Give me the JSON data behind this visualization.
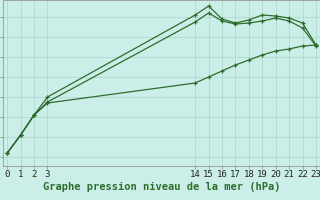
{
  "background_color": "#cceee8",
  "grid_color": "#aad8cc",
  "line_color": "#2d6e2d",
  "title": "Graphe pression niveau de la mer (hPa)",
  "tick_fontsize": 6.5,
  "title_fontsize": 7.5,
  "series": [
    {
      "x": [
        0,
        1,
        2,
        3,
        14,
        15,
        16,
        17,
        18,
        19,
        20,
        21,
        22,
        23
      ],
      "y": [
        1008.2,
        1009.1,
        1010.1,
        1011.0,
        1015.1,
        1015.55,
        1014.9,
        1014.7,
        1014.85,
        1015.1,
        1015.05,
        1014.95,
        1014.7,
        1013.6
      ]
    },
    {
      "x": [
        0,
        1,
        2,
        3,
        14,
        15,
        16,
        17,
        18,
        19,
        20,
        21,
        22,
        23
      ],
      "y": [
        1008.2,
        1009.1,
        1010.1,
        1010.75,
        1014.75,
        1015.2,
        1014.8,
        1014.65,
        1014.7,
        1014.8,
        1014.95,
        1014.8,
        1014.45,
        1013.55
      ]
    },
    {
      "x": [
        0,
        1,
        2,
        3,
        14,
        15,
        16,
        17,
        18,
        19,
        20,
        21,
        22,
        23
      ],
      "y": [
        1008.2,
        1009.1,
        1010.1,
        1010.7,
        1011.7,
        1012.0,
        1012.3,
        1012.6,
        1012.85,
        1013.1,
        1013.3,
        1013.4,
        1013.55,
        1013.6
      ]
    }
  ],
  "yticks": [
    1008,
    1009,
    1010,
    1011,
    1012,
    1013,
    1014,
    1015
  ],
  "xticks": [
    0,
    1,
    2,
    3,
    14,
    15,
    16,
    17,
    18,
    19,
    20,
    21,
    22,
    23
  ],
  "xlim": [
    -0.3,
    23.3
  ],
  "ylim": [
    1007.55,
    1015.85
  ]
}
